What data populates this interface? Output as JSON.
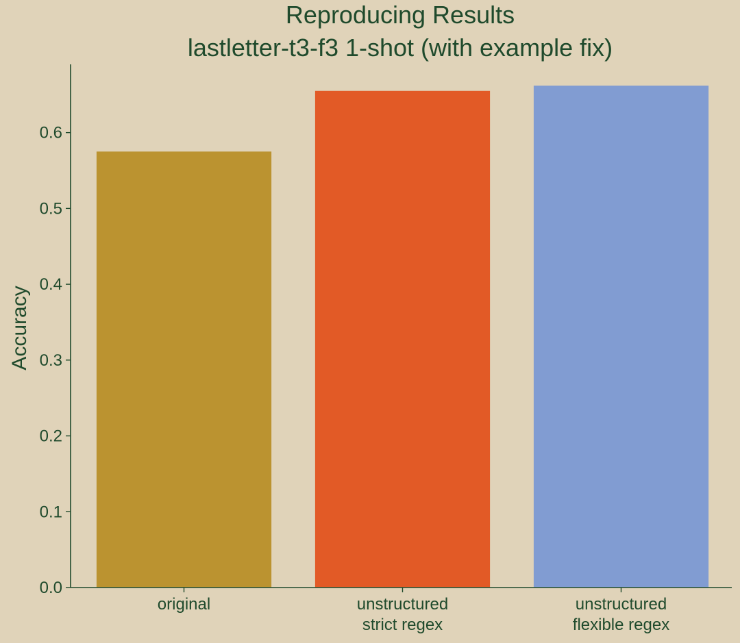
{
  "chart_data": {
    "type": "bar",
    "title": "Reproducing Results",
    "subtitle": "lastletter-t3-f3 1-shot (with example fix)",
    "ylabel": "Accuracy",
    "xlabel": "",
    "categories": [
      [
        "original"
      ],
      [
        "unstructured",
        "strict regex"
      ],
      [
        "unstructured",
        "flexible regex"
      ]
    ],
    "values": [
      0.575,
      0.655,
      0.662
    ],
    "colors": [
      "#bb9330",
      "#e25a26",
      "#819cd2"
    ],
    "ylim": [
      0,
      0.69
    ],
    "yticks": [
      0.0,
      0.1,
      0.2,
      0.3,
      0.4,
      0.5,
      0.6
    ],
    "ytick_labels": [
      "0.0",
      "0.1",
      "0.2",
      "0.3",
      "0.4",
      "0.5",
      "0.6"
    ],
    "grid": false,
    "legend": "none",
    "background": "#e0d3b9",
    "text_color": "#1f4a2c"
  }
}
